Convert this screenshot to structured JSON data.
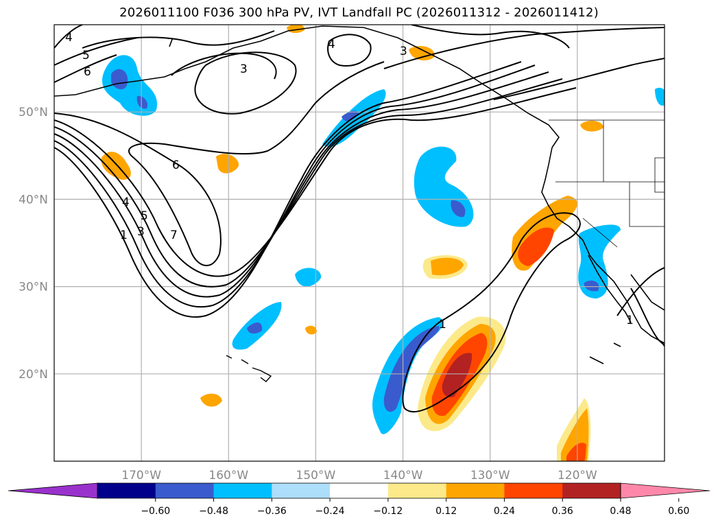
{
  "chart_data": {
    "type": "contour_map",
    "title": "2026011100 F036 300 hPa PV, IVT Landfall PC (2026011312 - 2026011412)",
    "map": {
      "lon_range": [
        -180,
        -110
      ],
      "lat_range": [
        10,
        60
      ],
      "lat_ticks": [
        {
          "value": 20,
          "label": "20°N"
        },
        {
          "value": 30,
          "label": "30°N"
        },
        {
          "value": 40,
          "label": "40°N"
        },
        {
          "value": 50,
          "label": "50°N"
        }
      ],
      "lon_ticks": [
        {
          "value": -170,
          "label": "170°W"
        },
        {
          "value": -160,
          "label": "160°W"
        },
        {
          "value": -150,
          "label": "150°W"
        },
        {
          "value": -140,
          "label": "140°W"
        },
        {
          "value": -130,
          "label": "130°W"
        },
        {
          "value": -120,
          "label": "120°W"
        }
      ],
      "grid": true
    },
    "pv_contour_labels": [
      "1",
      "3",
      "4",
      "5",
      "6",
      "7"
    ],
    "colorbar": {
      "ticks": [
        "−0.60",
        "−0.48",
        "−0.36",
        "−0.24",
        "−0.12",
        "0.12",
        "0.24",
        "0.36",
        "0.48",
        "0.60"
      ],
      "bins": [
        {
          "range": "< -0.60",
          "color": "#9932CC"
        },
        {
          "range": "-0.60 to -0.48",
          "color": "#00008B"
        },
        {
          "range": "-0.48 to -0.36",
          "color": "#3A5BCD"
        },
        {
          "range": "-0.36 to -0.24",
          "color": "#00BFFF"
        },
        {
          "range": "-0.24 to -0.12",
          "color": "#ADDEFA"
        },
        {
          "range": "-0.12 to 0.12",
          "color": "#FFFFFF"
        },
        {
          "range": "0.12 to 0.24",
          "color": "#FCE98A"
        },
        {
          "range": "0.24 to 0.36",
          "color": "#FFA500"
        },
        {
          "range": "0.36 to 0.48",
          "color": "#FF4500"
        },
        {
          "range": "0.48 to 0.60",
          "color": "#B22222"
        },
        {
          "range": "> 0.60",
          "color": "#FF88AA"
        }
      ],
      "extend": "both"
    }
  }
}
